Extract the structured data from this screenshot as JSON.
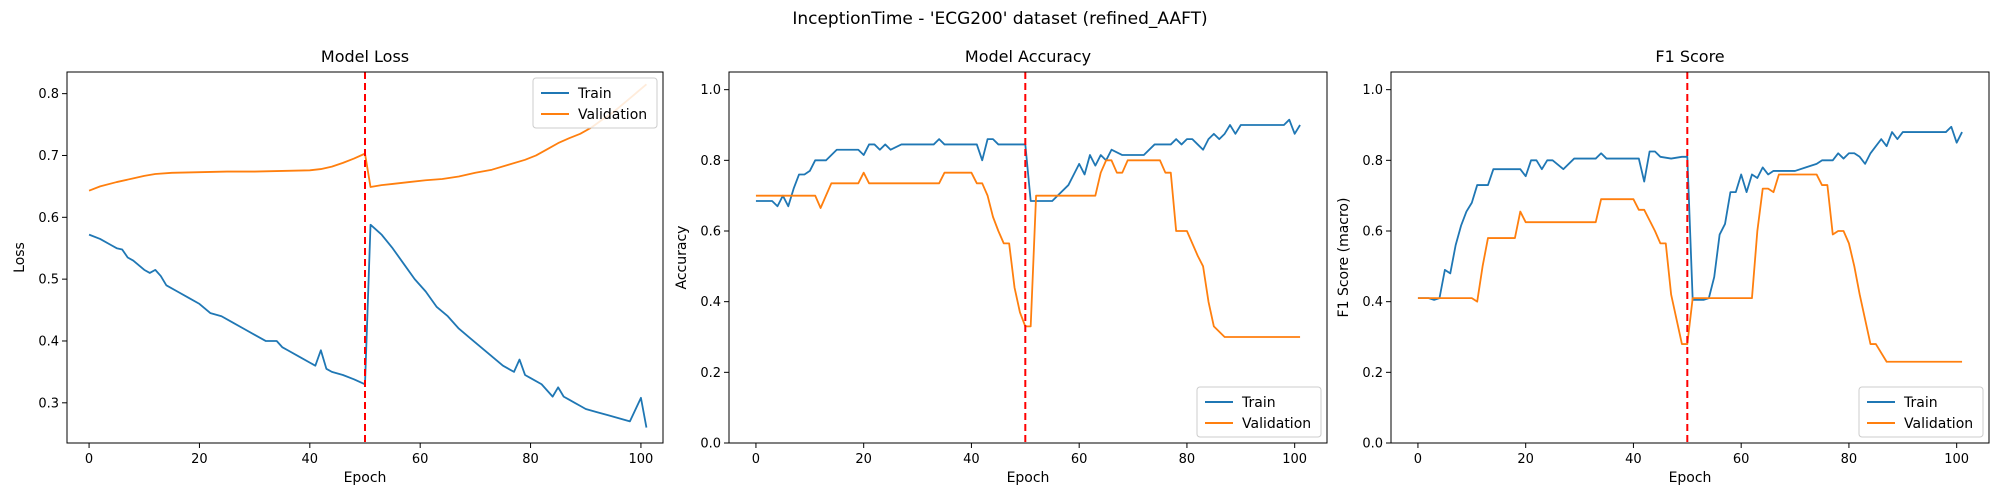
{
  "suptitle": "InceptionTime - 'ECG200' dataset (refined_AAFT)",
  "colors": {
    "train": "#1f77b4",
    "validation": "#ff7f0e",
    "marker": "#ff0000"
  },
  "chart_data": [
    {
      "type": "line",
      "title": "Model Loss",
      "xlabel": "Epoch",
      "ylabel": "Loss",
      "xlim": [
        -4,
        104
      ],
      "ylim": [
        0.235,
        0.835
      ],
      "xticks": [
        0,
        20,
        40,
        60,
        80,
        100
      ],
      "yticks": [
        0.3,
        0.4,
        0.5,
        0.6,
        0.7,
        0.8
      ],
      "vline_x": 50,
      "legend_loc": "top-right",
      "series": [
        {
          "name": "Train",
          "x": [
            0,
            2,
            4,
            5,
            6,
            7,
            8,
            10,
            11,
            12,
            13,
            14,
            16,
            18,
            20,
            22,
            24,
            26,
            28,
            30,
            32,
            34,
            35,
            36,
            38,
            40,
            41,
            42,
            43,
            44,
            46,
            48,
            50,
            51,
            53,
            55,
            57,
            59,
            61,
            63,
            65,
            67,
            69,
            71,
            73,
            75,
            77,
            78,
            79,
            80,
            82,
            84,
            85,
            86,
            87,
            88,
            89,
            90,
            92,
            94,
            96,
            98,
            100,
            101
          ],
          "y": [
            0.572,
            0.565,
            0.555,
            0.55,
            0.548,
            0.535,
            0.53,
            0.515,
            0.51,
            0.515,
            0.505,
            0.49,
            0.48,
            0.47,
            0.46,
            0.445,
            0.44,
            0.43,
            0.42,
            0.41,
            0.4,
            0.4,
            0.39,
            0.385,
            0.375,
            0.365,
            0.36,
            0.385,
            0.355,
            0.35,
            0.345,
            0.338,
            0.33,
            0.588,
            0.572,
            0.55,
            0.525,
            0.5,
            0.48,
            0.455,
            0.44,
            0.42,
            0.405,
            0.39,
            0.375,
            0.36,
            0.35,
            0.37,
            0.345,
            0.34,
            0.33,
            0.31,
            0.325,
            0.31,
            0.305,
            0.3,
            0.295,
            0.29,
            0.285,
            0.28,
            0.275,
            0.27,
            0.308,
            0.26
          ]
        },
        {
          "name": "Validation",
          "x": [
            0,
            2,
            5,
            8,
            10,
            12,
            15,
            20,
            25,
            30,
            35,
            40,
            42,
            44,
            46,
            48,
            50,
            51,
            53,
            55,
            58,
            61,
            64,
            67,
            70,
            73,
            76,
            79,
            81,
            83,
            85,
            87,
            89,
            91,
            93,
            95,
            97,
            99,
            101
          ],
          "y": [
            0.643,
            0.65,
            0.657,
            0.663,
            0.667,
            0.67,
            0.672,
            0.673,
            0.674,
            0.674,
            0.675,
            0.676,
            0.678,
            0.682,
            0.688,
            0.695,
            0.703,
            0.649,
            0.652,
            0.654,
            0.657,
            0.66,
            0.662,
            0.666,
            0.672,
            0.677,
            0.685,
            0.693,
            0.7,
            0.71,
            0.72,
            0.728,
            0.735,
            0.745,
            0.758,
            0.77,
            0.785,
            0.8,
            0.815
          ]
        }
      ]
    },
    {
      "type": "line",
      "title": "Model Accuracy",
      "xlabel": "Epoch",
      "ylabel": "Accuracy",
      "xlim": [
        -5,
        106
      ],
      "ylim": [
        0.0,
        1.05
      ],
      "xticks": [
        0,
        20,
        40,
        60,
        80,
        100
      ],
      "yticks": [
        0.0,
        0.2,
        0.4,
        0.6,
        0.8,
        1.0
      ],
      "vline_x": 50,
      "legend_loc": "bottom-right",
      "series": [
        {
          "name": "Train",
          "x": [
            0,
            3,
            4,
            5,
            6,
            7,
            8,
            9,
            10,
            11,
            12,
            13,
            15,
            17,
            19,
            20,
            21,
            22,
            23,
            24,
            25,
            27,
            29,
            31,
            33,
            34,
            35,
            37,
            39,
            41,
            42,
            43,
            44,
            45,
            47,
            49,
            50,
            51,
            52,
            53,
            55,
            56,
            58,
            59,
            60,
            61,
            62,
            63,
            64,
            65,
            66,
            68,
            70,
            72,
            74,
            75,
            77,
            78,
            79,
            80,
            81,
            82,
            83,
            84,
            85,
            86,
            87,
            88,
            89,
            90,
            92,
            94,
            96,
            98,
            99,
            100,
            101
          ],
          "y": [
            0.685,
            0.685,
            0.67,
            0.7,
            0.67,
            0.72,
            0.76,
            0.76,
            0.77,
            0.8,
            0.8,
            0.8,
            0.83,
            0.83,
            0.83,
            0.815,
            0.845,
            0.845,
            0.83,
            0.845,
            0.83,
            0.845,
            0.845,
            0.845,
            0.845,
            0.86,
            0.845,
            0.845,
            0.845,
            0.845,
            0.8,
            0.86,
            0.86,
            0.845,
            0.845,
            0.845,
            0.845,
            0.685,
            0.685,
            0.685,
            0.685,
            0.7,
            0.73,
            0.76,
            0.79,
            0.76,
            0.815,
            0.785,
            0.815,
            0.8,
            0.83,
            0.815,
            0.815,
            0.815,
            0.845,
            0.845,
            0.845,
            0.86,
            0.845,
            0.86,
            0.86,
            0.845,
            0.83,
            0.86,
            0.875,
            0.86,
            0.875,
            0.9,
            0.875,
            0.9,
            0.9,
            0.9,
            0.9,
            0.9,
            0.915,
            0.875,
            0.9
          ]
        },
        {
          "name": "Validation",
          "x": [
            0,
            2,
            4,
            6,
            8,
            10,
            11,
            12,
            13,
            14,
            15,
            17,
            19,
            20,
            21,
            23,
            25,
            27,
            29,
            31,
            33,
            34,
            35,
            37,
            39,
            40,
            41,
            42,
            43,
            44,
            45,
            46,
            47,
            48,
            49,
            50,
            51,
            52,
            53,
            55,
            57,
            59,
            61,
            63,
            64,
            65,
            66,
            67,
            68,
            69,
            70,
            72,
            74,
            75,
            76,
            77,
            78,
            79,
            80,
            81,
            82,
            83,
            84,
            85,
            87,
            89,
            91,
            93,
            95,
            97,
            99,
            101
          ],
          "y": [
            0.7,
            0.7,
            0.7,
            0.7,
            0.7,
            0.7,
            0.7,
            0.665,
            0.7,
            0.735,
            0.735,
            0.735,
            0.735,
            0.765,
            0.735,
            0.735,
            0.735,
            0.735,
            0.735,
            0.735,
            0.735,
            0.735,
            0.765,
            0.765,
            0.765,
            0.765,
            0.735,
            0.735,
            0.7,
            0.64,
            0.6,
            0.565,
            0.565,
            0.44,
            0.37,
            0.33,
            0.33,
            0.7,
            0.7,
            0.7,
            0.7,
            0.7,
            0.7,
            0.7,
            0.765,
            0.8,
            0.8,
            0.765,
            0.765,
            0.8,
            0.8,
            0.8,
            0.8,
            0.8,
            0.765,
            0.765,
            0.6,
            0.6,
            0.6,
            0.565,
            0.53,
            0.5,
            0.4,
            0.33,
            0.3,
            0.3,
            0.3,
            0.3,
            0.3,
            0.3,
            0.3,
            0.3
          ]
        }
      ]
    },
    {
      "type": "line",
      "title": "F1 Score",
      "xlabel": "Epoch",
      "ylabel": "F1 Score (macro)",
      "xlim": [
        -5,
        106
      ],
      "ylim": [
        0.0,
        1.05
      ],
      "xticks": [
        0,
        20,
        40,
        60,
        80,
        100
      ],
      "yticks": [
        0.0,
        0.2,
        0.4,
        0.6,
        0.8,
        1.0
      ],
      "vline_x": 50,
      "legend_loc": "bottom-right",
      "series": [
        {
          "name": "Train",
          "x": [
            0,
            2,
            3,
            4,
            5,
            6,
            7,
            8,
            9,
            10,
            11,
            12,
            13,
            14,
            15,
            17,
            19,
            20,
            21,
            22,
            23,
            24,
            25,
            27,
            29,
            31,
            33,
            34,
            35,
            37,
            39,
            41,
            42,
            43,
            44,
            45,
            47,
            49,
            50,
            51,
            52,
            53,
            54,
            55,
            56,
            57,
            58,
            59,
            60,
            61,
            62,
            63,
            64,
            65,
            66,
            68,
            70,
            72,
            74,
            75,
            77,
            78,
            79,
            80,
            81,
            82,
            83,
            84,
            85,
            86,
            87,
            88,
            89,
            90,
            92,
            94,
            96,
            98,
            99,
            100,
            101
          ],
          "y": [
            0.41,
            0.41,
            0.405,
            0.41,
            0.49,
            0.48,
            0.56,
            0.615,
            0.655,
            0.68,
            0.73,
            0.73,
            0.73,
            0.775,
            0.775,
            0.775,
            0.775,
            0.755,
            0.8,
            0.8,
            0.775,
            0.8,
            0.8,
            0.775,
            0.805,
            0.805,
            0.805,
            0.82,
            0.805,
            0.805,
            0.805,
            0.805,
            0.74,
            0.825,
            0.825,
            0.81,
            0.805,
            0.81,
            0.81,
            0.405,
            0.405,
            0.405,
            0.41,
            0.47,
            0.59,
            0.62,
            0.71,
            0.71,
            0.76,
            0.71,
            0.76,
            0.75,
            0.78,
            0.76,
            0.77,
            0.77,
            0.77,
            0.78,
            0.79,
            0.8,
            0.8,
            0.82,
            0.805,
            0.82,
            0.82,
            0.81,
            0.79,
            0.82,
            0.84,
            0.86,
            0.84,
            0.88,
            0.86,
            0.88,
            0.88,
            0.88,
            0.88,
            0.88,
            0.895,
            0.85,
            0.88
          ]
        },
        {
          "name": "Validation",
          "x": [
            0,
            2,
            4,
            6,
            8,
            10,
            11,
            12,
            13,
            14,
            15,
            17,
            18,
            19,
            20,
            21,
            23,
            25,
            27,
            29,
            31,
            33,
            34,
            35,
            37,
            39,
            40,
            41,
            42,
            43,
            44,
            45,
            46,
            47,
            48,
            49,
            50,
            51,
            52,
            53,
            55,
            57,
            59,
            61,
            62,
            63,
            64,
            65,
            66,
            67,
            68,
            69,
            70,
            72,
            74,
            75,
            76,
            77,
            78,
            79,
            80,
            81,
            82,
            83,
            84,
            85,
            87,
            89,
            91,
            93,
            95,
            97,
            99,
            101
          ],
          "y": [
            0.41,
            0.41,
            0.41,
            0.41,
            0.41,
            0.41,
            0.4,
            0.5,
            0.58,
            0.58,
            0.58,
            0.58,
            0.58,
            0.655,
            0.625,
            0.625,
            0.625,
            0.625,
            0.625,
            0.625,
            0.625,
            0.625,
            0.69,
            0.69,
            0.69,
            0.69,
            0.69,
            0.66,
            0.66,
            0.63,
            0.6,
            0.565,
            0.565,
            0.42,
            0.35,
            0.28,
            0.28,
            0.41,
            0.41,
            0.41,
            0.41,
            0.41,
            0.41,
            0.41,
            0.41,
            0.6,
            0.72,
            0.72,
            0.71,
            0.76,
            0.76,
            0.76,
            0.76,
            0.76,
            0.76,
            0.73,
            0.73,
            0.59,
            0.6,
            0.6,
            0.565,
            0.5,
            0.42,
            0.35,
            0.28,
            0.28,
            0.23,
            0.23,
            0.23,
            0.23,
            0.23,
            0.23,
            0.23,
            0.23
          ]
        }
      ]
    }
  ]
}
